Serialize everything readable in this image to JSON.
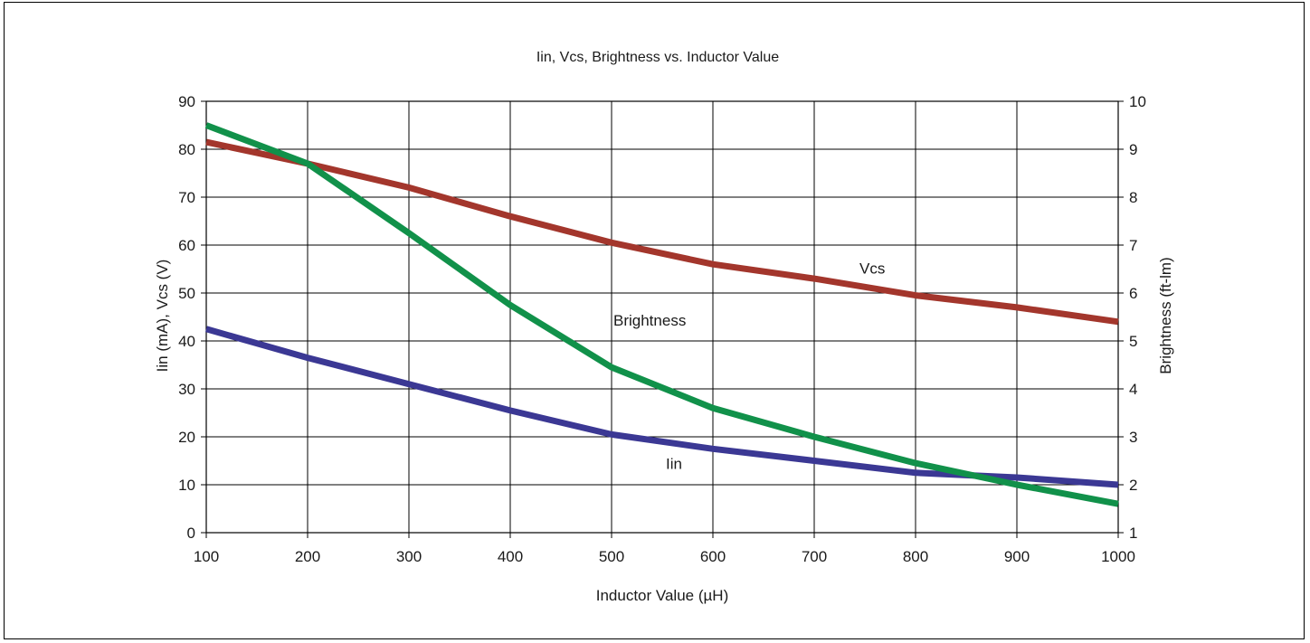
{
  "chart_data": {
    "type": "line",
    "title": "Iin, Vcs, Brightness vs. Inductor Value",
    "xlabel": "Inductor Value (µH)",
    "ylabel": "Iin (mA), Vcs (V)",
    "y2label": "Brightness (ft-lm)",
    "x": [
      100,
      200,
      300,
      400,
      500,
      600,
      700,
      800,
      900,
      1000
    ],
    "xlim": [
      100,
      1000
    ],
    "ylim": [
      0,
      90
    ],
    "y2lim": [
      1,
      10
    ],
    "xticks": [
      "100",
      "200",
      "300",
      "400",
      "500",
      "600",
      "700",
      "800",
      "900",
      "1000"
    ],
    "yticks": [
      "0",
      "10",
      "20",
      "30",
      "40",
      "50",
      "60",
      "70",
      "80",
      "90"
    ],
    "y2ticks": [
      "1",
      "2",
      "3",
      "4",
      "5",
      "6",
      "7",
      "8",
      "9",
      "10"
    ],
    "grid": true,
    "series": [
      {
        "name": "Vcs",
        "axis": "left",
        "color": "#a3362c",
        "values": [
          81.5,
          77,
          72,
          66,
          60.5,
          56,
          53,
          49.5,
          47,
          44
        ]
      },
      {
        "name": "Iin",
        "axis": "left",
        "color": "#3b3894",
        "values": [
          42.5,
          36.5,
          31,
          25.5,
          20.5,
          17.5,
          15,
          12.5,
          11.5,
          10
        ]
      },
      {
        "name": "Brightness",
        "axis": "right",
        "color": "#11914a",
        "values": [
          9.5,
          8.7,
          7.25,
          5.75,
          4.45,
          3.6,
          3,
          2.45,
          2,
          1.6
        ]
      }
    ]
  }
}
